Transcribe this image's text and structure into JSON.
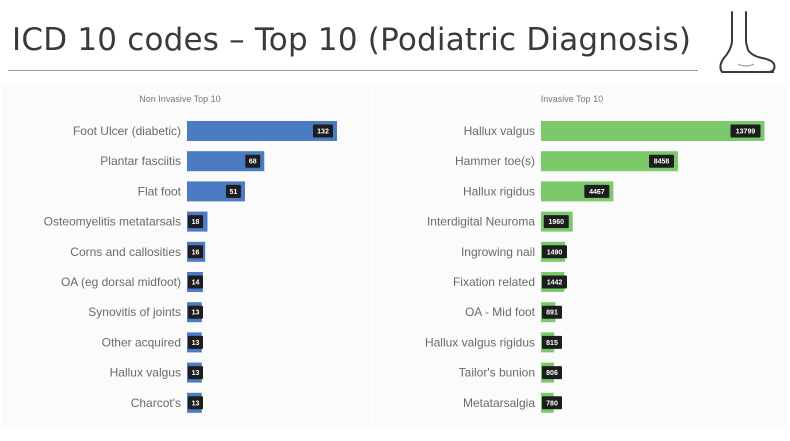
{
  "slide": {
    "title": "ICD 10 codes – Top 10 (Podiatric Diagnosis)"
  },
  "icons": {
    "foot": "foot-outline-icon"
  },
  "colors": {
    "non_invasive_bar": "#4a7bc3",
    "invasive_bar": "#7cc96c",
    "value_box": "#1d1d1d",
    "title_text": "#3a3a3a"
  },
  "chart_data": [
    {
      "type": "bar",
      "orientation": "horizontal",
      "title": "Non Invasive Top 10",
      "categories": [
        "Foot Ulcer (diabetic)",
        "Plantar fasciitis",
        "Flat foot",
        "Osteomyelitis metatarsals",
        "Corns and callosities",
        "OA (eg dorsal midfoot)",
        "Synovitis of joints",
        "Other acquired",
        "Hallux valgus",
        "Charcot's"
      ],
      "values": [
        132,
        68,
        51,
        18,
        16,
        14,
        13,
        13,
        13,
        13
      ],
      "value_labels": [
        "132",
        "68",
        "51",
        "18",
        "16",
        "14",
        "13",
        "13",
        "13",
        "13"
      ],
      "xlim": [
        0,
        220
      ],
      "grid": false,
      "legend": "none"
    },
    {
      "type": "bar",
      "orientation": "horizontal",
      "title": "Invasive Top 10",
      "categories": [
        "Hallux valgus",
        "Hammer toe(s)",
        "Hallux rigidus",
        "Interdigital Neuroma",
        "Ingrowing nail",
        "Fixation related",
        "OA - Mid foot",
        "Hallux valgus rigidus",
        "Tailor's bunion",
        "Metatarsalgia"
      ],
      "values": [
        13799,
        8458,
        4467,
        1960,
        1490,
        1442,
        891,
        815,
        806,
        780
      ],
      "value_labels": [
        "13799",
        "8458",
        "4467",
        "1960",
        "1490",
        "1442",
        "891",
        "815",
        "806",
        "780"
      ],
      "xlim": [
        0,
        14200
      ],
      "grid": false,
      "legend": "none"
    }
  ]
}
